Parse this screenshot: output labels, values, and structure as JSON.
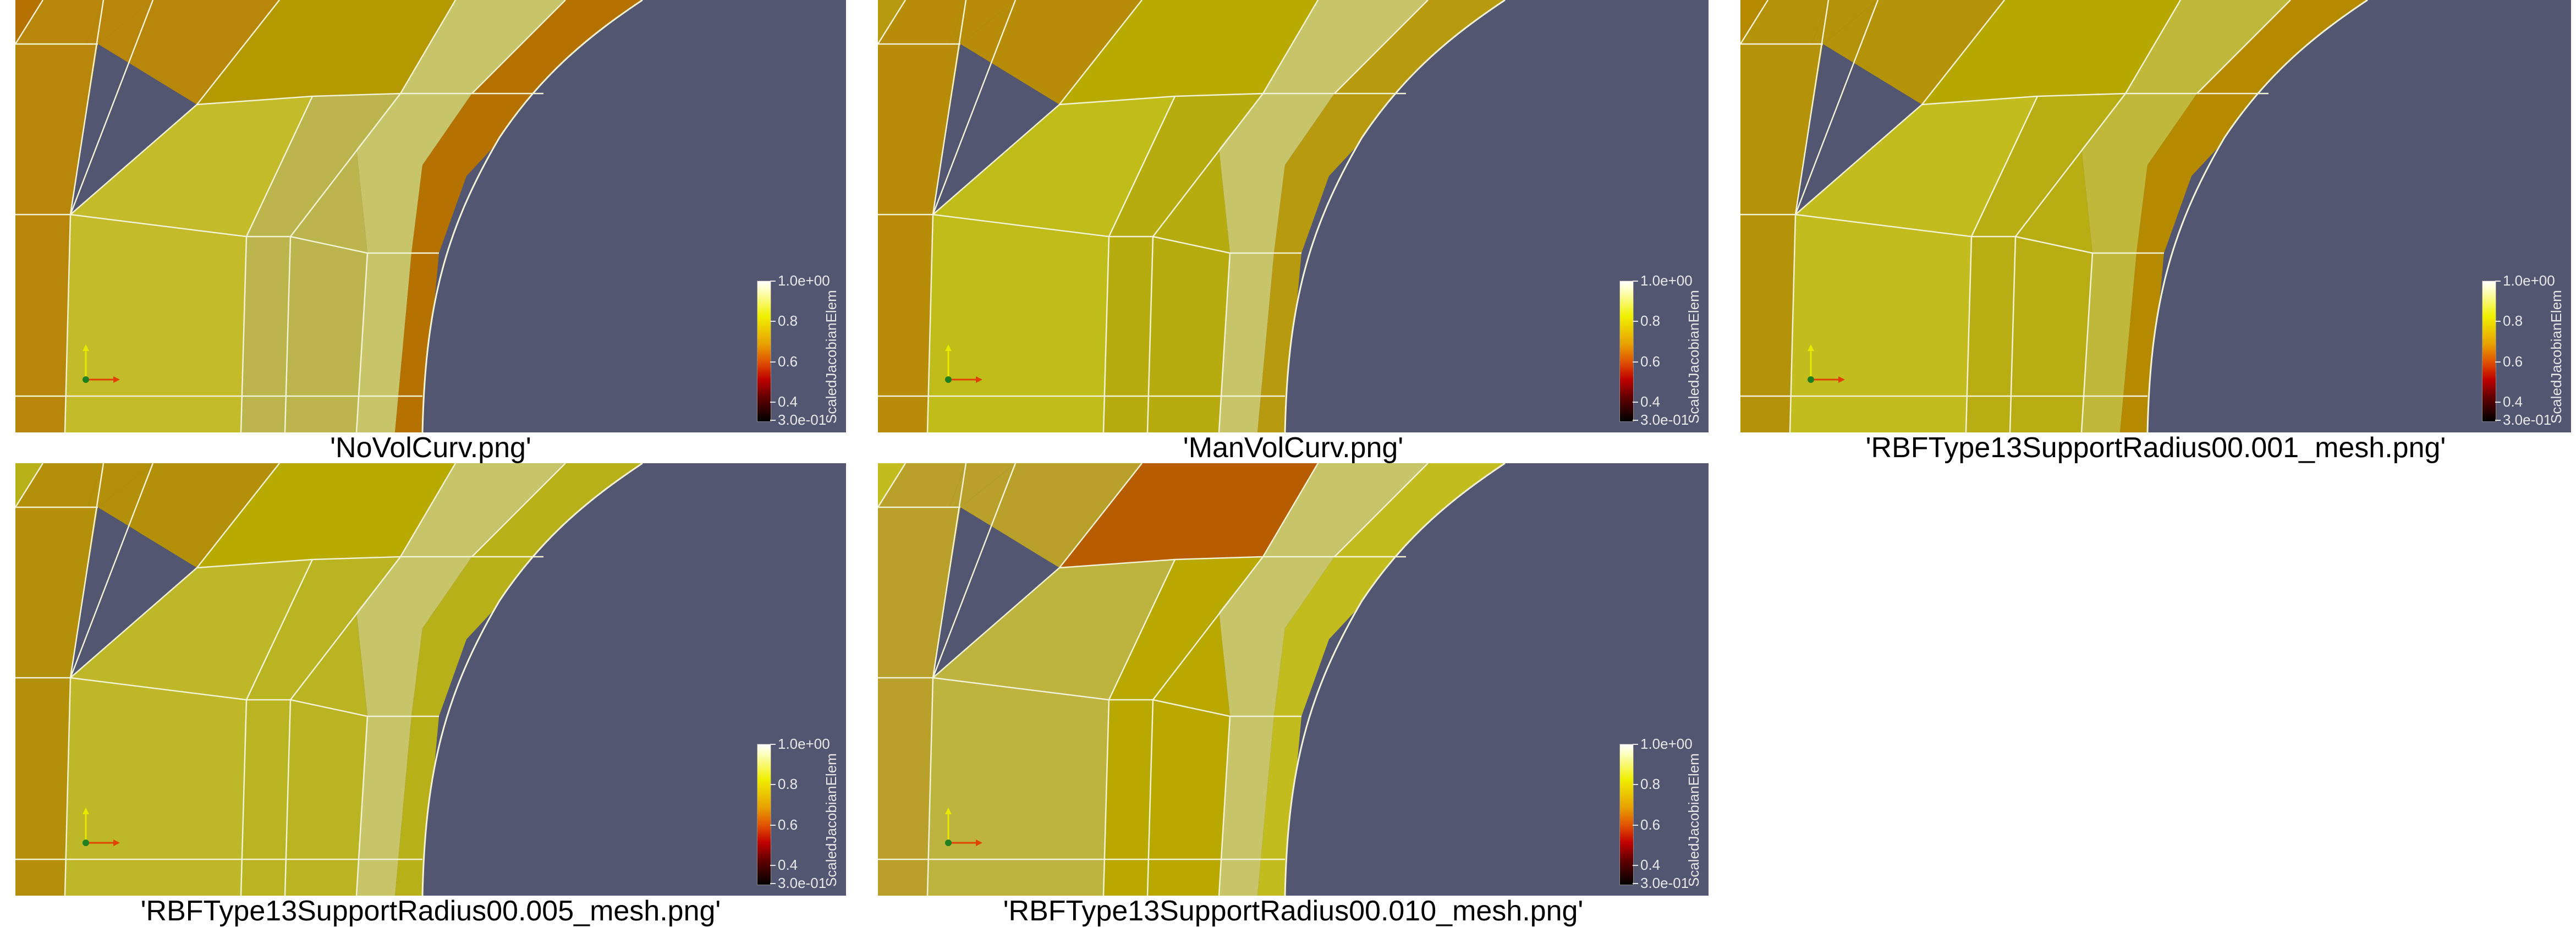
{
  "panels": [
    {
      "caption": "'NoVolCurv.png'",
      "colors": {
        "a": "#b8860b",
        "b": "#b49a00",
        "c": "#c4bb2a",
        "d": "#bcb44c",
        "e": "#c8c46a",
        "f": "#b67200"
      }
    },
    {
      "caption": "'ManVolCurv.png'",
      "colors": {
        "a": "#b68c08",
        "b": "#b8aa00",
        "c": "#c0bc1a",
        "d": "#b6ac10",
        "e": "#c8c46a",
        "f": "#b89a10"
      }
    },
    {
      "caption": "'RBFType13SupportRadius00.001_mesh.png'",
      "colors": {
        "a": "#b4920a",
        "b": "#b6a800",
        "c": "#c2bc1e",
        "d": "#b8ae14",
        "e": "#c0b83a",
        "f": "#b68a00"
      }
    },
    {
      "caption": "'RBFType13SupportRadius00.005_mesh.png'",
      "colors": {
        "a": "#b4900a",
        "b": "#b8aa00",
        "c": "#beb828",
        "d": "#bab422",
        "e": "#c8c46a",
        "f": "#b8b018"
      }
    },
    {
      "caption": "'RBFType13SupportRadius00.010_mesh.png'",
      "colors": {
        "a": "#b8a02a",
        "b": "#b85c00",
        "c": "#bdb440",
        "d": "#b8a800",
        "e": "#c8c46a",
        "f": "#c2bc1e"
      }
    }
  ],
  "colorbar": {
    "title": "ScaledJacobianElem",
    "labels": [
      "1.0e+00",
      "0.8",
      "0.6",
      "0.4",
      "3.0e-01"
    ]
  },
  "background_color": "#525671",
  "mesh_line_color": "#f2f2d6"
}
